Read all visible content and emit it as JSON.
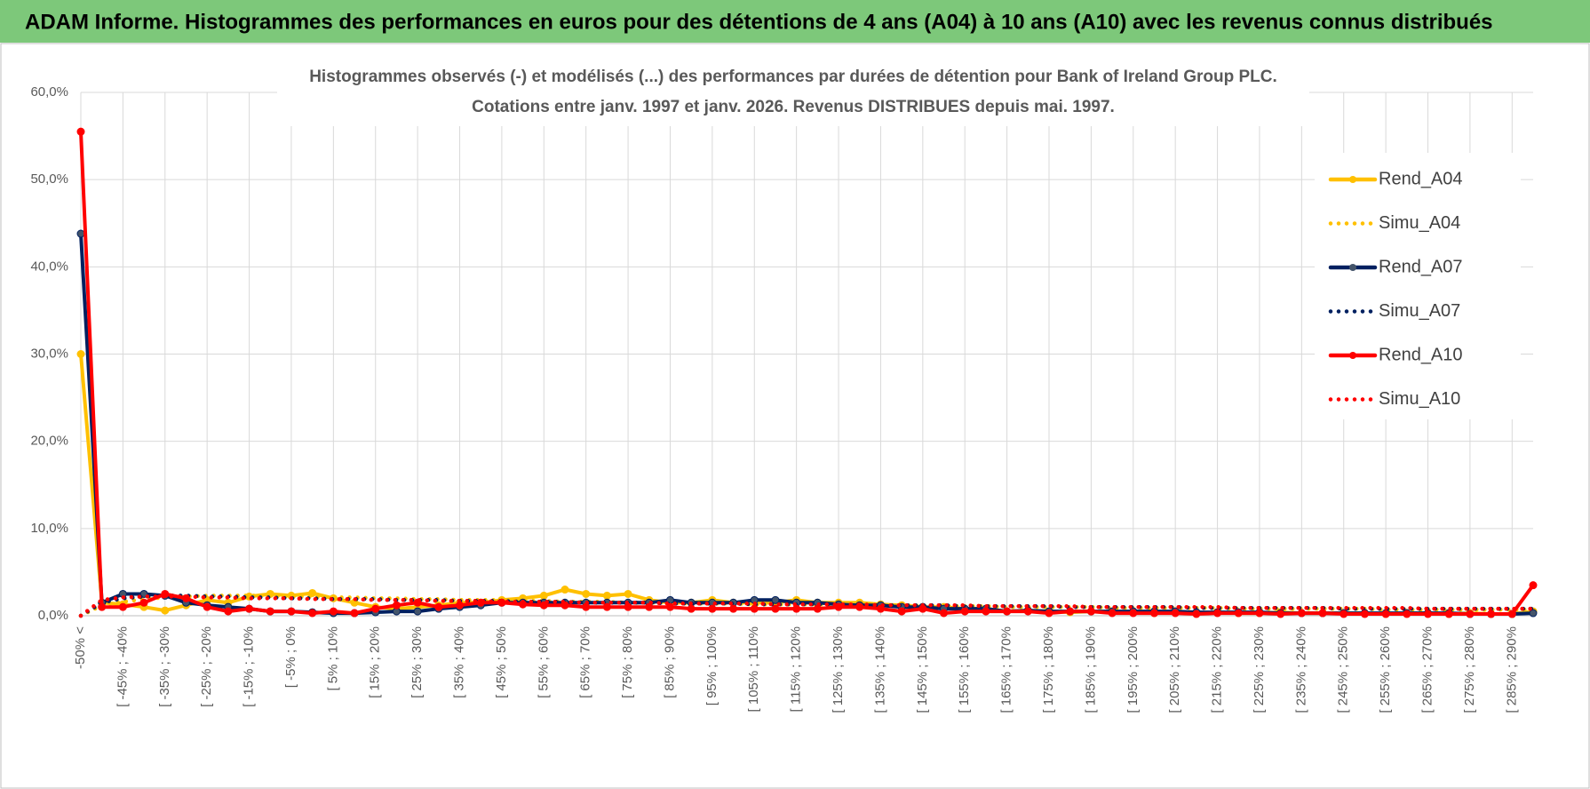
{
  "page_title": "ADAM Informe. Histogrammes des performances en euros pour des détentions de 4 ans (A04) à 10 ans (A10) avec les revenus connus distribués",
  "chart_data": {
    "type": "line",
    "title": "Histogrammes observés (-) et modélisés (...) des performances par durées de détention pour Bank of Ireland Group PLC.",
    "subtitle": "Cotations entre janv. 1997 et janv. 2026. Revenus DISTRIBUES depuis mai. 1997.",
    "categories": [
      "-50% <",
      null,
      "[ -45% ; -40%",
      null,
      "[ -35% ; -30%",
      null,
      "[ -25% ; -20%",
      null,
      "[ -15% ; -10%",
      null,
      "[ -5% ; 0%",
      null,
      "[ 5% ; 10%",
      null,
      "[ 15% ; 20%",
      null,
      "[ 25% ; 30%",
      null,
      "[ 35% ; 40%",
      null,
      "[ 45% ; 50%",
      null,
      "[ 55% ; 60%",
      null,
      "[ 65% ; 70%",
      null,
      "[ 75% ; 80%",
      null,
      "[ 85% ; 90%",
      null,
      "[ 95% ; 100%",
      null,
      "[ 105% ; 110%",
      null,
      "[ 115% ; 120%",
      null,
      "[ 125% ; 130%",
      null,
      "[ 135% ; 140%",
      null,
      "[ 145% ; 150%",
      null,
      "[ 155% ; 160%",
      null,
      "[ 165% ; 170%",
      null,
      "[ 175% ; 180%",
      null,
      "[ 185% ; 190%",
      null,
      "[ 195% ; 200%",
      null,
      "[ 205% ; 210%",
      null,
      "[ 215% ; 220%",
      null,
      "[ 225% ; 230%",
      null,
      "[ 235% ; 240%",
      null,
      "[ 245% ; 250%",
      null,
      "[ 255% ; 260%",
      null,
      "[ 265% ; 270%",
      null,
      "[ 275% ; 280%",
      null,
      "[ 285% ; 290%",
      null
    ],
    "series": [
      {
        "name": "Rend_A04",
        "color": "#FFC000",
        "style": "solid",
        "values": [
          30.0,
          1.5,
          1.3,
          1.0,
          0.6,
          1.2,
          1.8,
          1.5,
          2.2,
          2.5,
          2.3,
          2.6,
          2.0,
          1.5,
          1.0,
          0.8,
          1.0,
          1.2,
          1.5,
          1.5,
          1.8,
          2.0,
          2.3,
          3.0,
          2.5,
          2.3,
          2.5,
          1.8,
          1.5,
          1.5,
          1.8,
          1.5,
          1.5,
          1.5,
          1.8,
          1.5,
          1.5,
          1.5,
          1.3,
          1.2,
          1.0,
          1.0,
          0.8,
          0.8,
          0.5,
          0.6,
          0.5,
          0.4,
          0.5,
          0.4,
          0.5,
          0.3,
          0.4,
          0.3,
          0.4,
          0.3,
          0.3,
          0.4,
          0.3,
          0.3,
          0.3,
          0.3,
          0.2,
          0.3,
          0.3,
          0.2,
          0.3,
          0.2,
          0.2,
          0.5
        ]
      },
      {
        "name": "Simu_A04",
        "color": "#FFC000",
        "style": "dotted",
        "values": [
          0,
          1.2,
          1.6,
          1.9,
          2.1,
          2.2,
          2.3,
          2.3,
          2.3,
          2.3,
          2.2,
          2.2,
          2.1,
          2.1,
          2.0,
          2.0,
          1.9,
          1.9,
          1.8,
          1.8,
          1.8,
          1.7,
          1.7,
          1.6,
          1.6,
          1.6,
          1.5,
          1.5,
          1.5,
          1.4,
          1.4,
          1.4,
          1.3,
          1.3,
          1.3,
          1.3,
          1.2,
          1.2,
          1.2,
          1.2,
          1.1,
          1.1,
          1.1,
          1.1,
          1.0,
          1.0,
          1.0,
          1.0,
          1.0,
          0.9,
          0.9,
          0.9,
          0.9,
          0.9,
          0.9,
          0.8,
          0.8,
          0.8,
          0.8,
          0.8,
          0.8,
          0.8,
          0.7,
          0.7,
          0.7,
          0.7,
          0.7,
          0.7,
          0.7,
          0.7
        ]
      },
      {
        "name": "Rend_A07",
        "color": "#002060",
        "style": "solid",
        "values": [
          43.8,
          1.5,
          2.5,
          2.5,
          2.3,
          1.5,
          1.2,
          1.0,
          0.8,
          0.5,
          0.5,
          0.4,
          0.3,
          0.3,
          0.4,
          0.5,
          0.5,
          0.8,
          1.0,
          1.2,
          1.5,
          1.5,
          1.5,
          1.5,
          1.5,
          1.5,
          1.5,
          1.5,
          1.8,
          1.5,
          1.5,
          1.5,
          1.8,
          1.8,
          1.5,
          1.5,
          1.3,
          1.2,
          1.2,
          1.0,
          1.0,
          0.8,
          0.8,
          0.8,
          0.5,
          0.6,
          0.5,
          0.5,
          0.5,
          0.5,
          0.5,
          0.5,
          0.5,
          0.4,
          0.4,
          0.4,
          0.4,
          0.3,
          0.3,
          0.3,
          0.3,
          0.3,
          0.3,
          0.3,
          0.3,
          0.3,
          0.2,
          0.2,
          0.2,
          0.3
        ]
      },
      {
        "name": "Simu_A07",
        "color": "#002060",
        "style": "dotted",
        "values": [
          0,
          1.5,
          2.0,
          2.2,
          2.3,
          2.3,
          2.2,
          2.2,
          2.1,
          2.1,
          2.0,
          2.0,
          1.9,
          1.9,
          1.9,
          1.8,
          1.8,
          1.8,
          1.7,
          1.7,
          1.7,
          1.6,
          1.6,
          1.6,
          1.5,
          1.5,
          1.5,
          1.5,
          1.4,
          1.4,
          1.4,
          1.4,
          1.3,
          1.3,
          1.3,
          1.3,
          1.3,
          1.2,
          1.2,
          1.2,
          1.2,
          1.2,
          1.1,
          1.1,
          1.1,
          1.1,
          1.1,
          1.0,
          1.0,
          1.0,
          1.0,
          1.0,
          1.0,
          0.9,
          0.9,
          0.9,
          0.9,
          0.9,
          0.9,
          0.9,
          0.8,
          0.8,
          0.8,
          0.8,
          0.8,
          0.8,
          0.8,
          0.8,
          0.8,
          0.8
        ]
      },
      {
        "name": "Rend_A10",
        "color": "#FF0000",
        "style": "solid",
        "values": [
          55.5,
          1.0,
          1.0,
          1.5,
          2.5,
          2.0,
          1.0,
          0.5,
          0.8,
          0.5,
          0.5,
          0.3,
          0.5,
          0.3,
          0.8,
          1.2,
          1.5,
          1.0,
          1.2,
          1.5,
          1.5,
          1.3,
          1.2,
          1.2,
          1.0,
          1.0,
          1.0,
          1.0,
          1.0,
          0.8,
          0.8,
          0.8,
          0.8,
          0.8,
          0.8,
          0.8,
          1.0,
          1.0,
          0.8,
          0.5,
          0.8,
          0.3,
          0.5,
          0.5,
          0.5,
          0.5,
          0.3,
          0.5,
          0.5,
          0.3,
          0.3,
          0.3,
          0.3,
          0.2,
          0.3,
          0.3,
          0.3,
          0.2,
          0.3,
          0.3,
          0.2,
          0.2,
          0.2,
          0.2,
          0.2,
          0.2,
          0.2,
          0.2,
          0.2,
          3.5
        ]
      },
      {
        "name": "Simu_A10",
        "color": "#FF0000",
        "style": "dotted",
        "values": [
          0,
          1.8,
          2.1,
          2.2,
          2.2,
          2.2,
          2.1,
          2.1,
          2.0,
          2.0,
          2.0,
          1.9,
          1.9,
          1.9,
          1.8,
          1.8,
          1.8,
          1.7,
          1.7,
          1.7,
          1.6,
          1.6,
          1.6,
          1.6,
          1.5,
          1.5,
          1.5,
          1.5,
          1.4,
          1.4,
          1.4,
          1.4,
          1.4,
          1.3,
          1.3,
          1.3,
          1.3,
          1.3,
          1.2,
          1.2,
          1.2,
          1.2,
          1.2,
          1.1,
          1.1,
          1.1,
          1.1,
          1.1,
          1.0,
          1.0,
          1.0,
          1.0,
          1.0,
          1.0,
          1.0,
          0.9,
          0.9,
          0.9,
          0.9,
          0.9,
          0.9,
          0.9,
          0.9,
          0.9,
          0.8,
          0.8,
          0.8,
          0.8,
          0.8,
          0.8
        ]
      }
    ],
    "ylim": [
      0,
      60
    ],
    "yticks": [
      {
        "value": 0,
        "label": "0,0%"
      },
      {
        "value": 10,
        "label": "10,0%"
      },
      {
        "value": 20,
        "label": "20,0%"
      },
      {
        "value": 30,
        "label": "30,0%"
      },
      {
        "value": 40,
        "label": "40,0%"
      },
      {
        "value": 50,
        "label": "50,0%"
      },
      {
        "value": 60,
        "label": "60,0%"
      }
    ],
    "grid": true,
    "legend": "right"
  }
}
